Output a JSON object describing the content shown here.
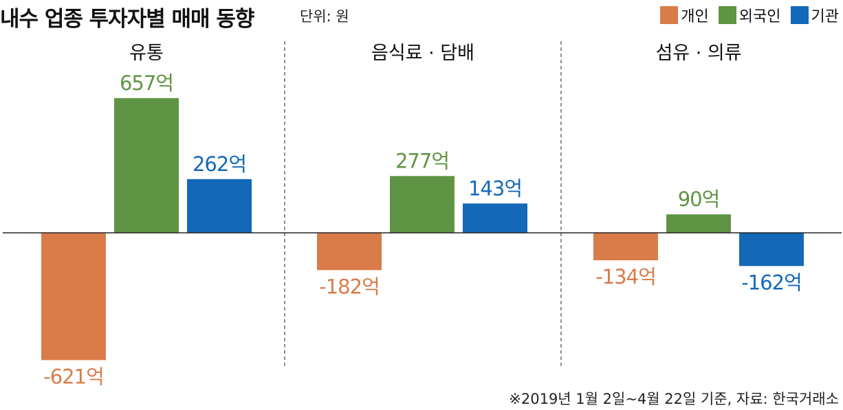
{
  "title": "내수 업종 투자자별 매매 동향",
  "unit": "단위: 원",
  "footnote": "※2019년 1월 2일~4월 22일 기준, 자료: 한국거래소",
  "colors": {
    "individual": "#d97c4a",
    "foreign": "#5f9444",
    "institution": "#1369b8"
  },
  "chart_data": {
    "type": "bar",
    "categories": [
      "유통",
      "음식료 · 담배",
      "섬유 · 의류"
    ],
    "series": [
      {
        "name": "개인",
        "values": [
          -621,
          -182,
          -134
        ],
        "labels": [
          "-621억",
          "-182억",
          "-134억"
        ]
      },
      {
        "name": "외국인",
        "values": [
          657,
          277,
          90
        ],
        "labels": [
          "657억",
          "277억",
          "90억"
        ]
      },
      {
        "name": "기관",
        "values": [
          262,
          143,
          -162
        ],
        "labels": [
          "262억",
          "143억",
          "-162억"
        ]
      }
    ],
    "ylim": [
      -700,
      700
    ],
    "legend": "top-right",
    "grid": false
  }
}
